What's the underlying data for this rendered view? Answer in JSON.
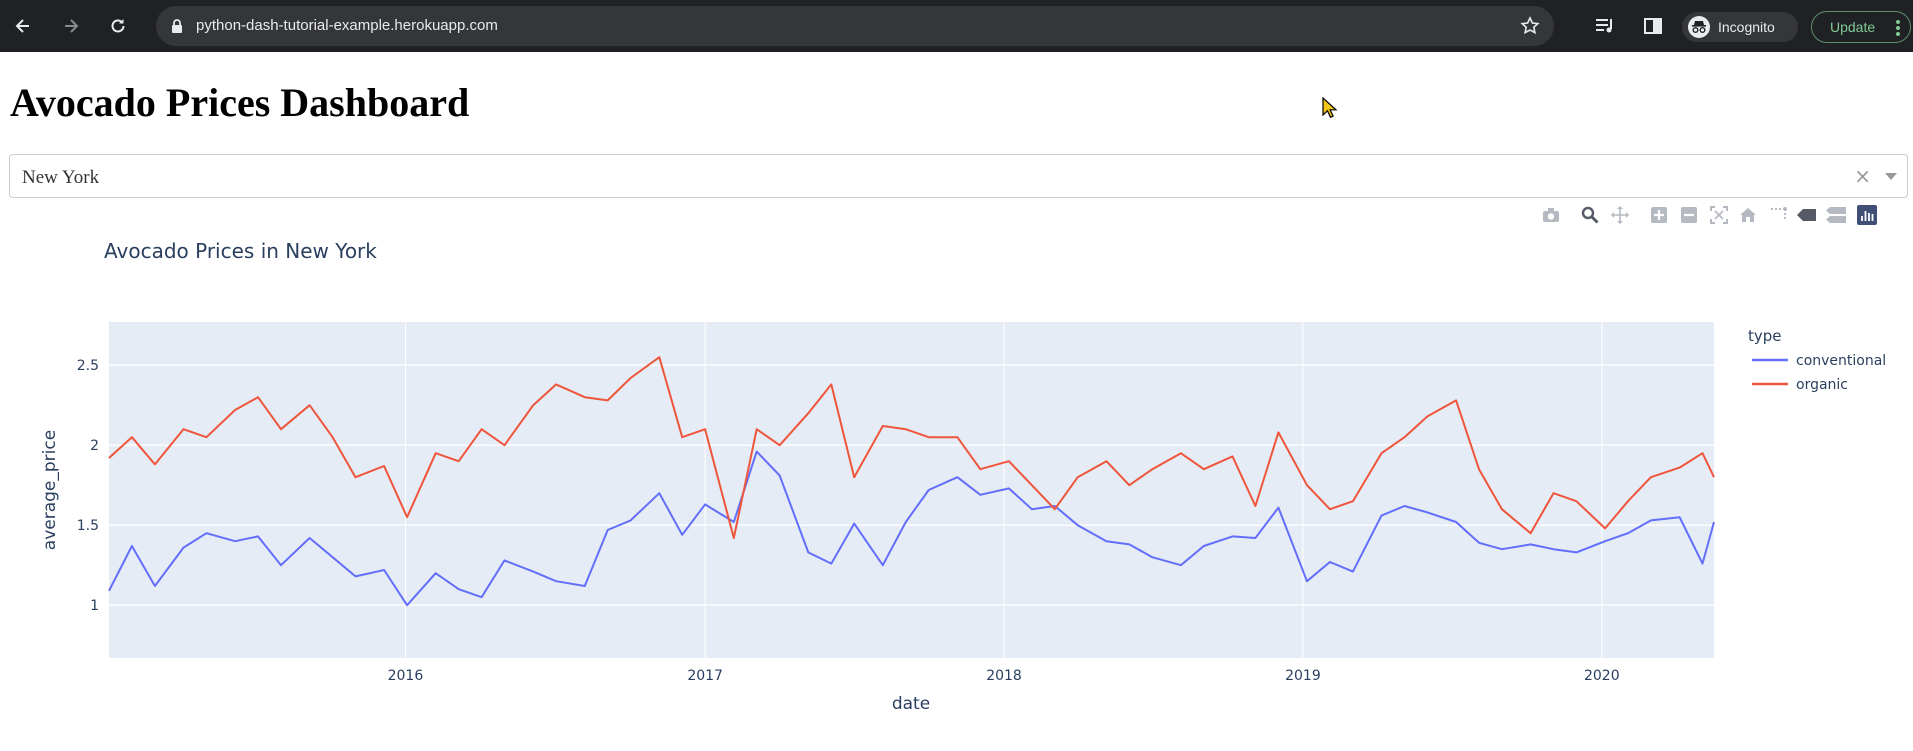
{
  "browser": {
    "url": "python-dash-tutorial-example.herokuapp.com",
    "profile_label": "Incognito",
    "update_label": "Update"
  },
  "page": {
    "title": "Avocado Prices Dashboard"
  },
  "region_dropdown": {
    "selected": "New York",
    "clear_symbol": "×"
  },
  "modebar": {
    "icons": [
      "camera-icon",
      "zoom-icon",
      "pan-icon",
      "zoom-in-icon",
      "zoom-out-icon",
      "autoscale-icon",
      "reset-axes-icon",
      "spike-lines-icon",
      "hover-closest-icon",
      "hover-compare-icon",
      "plotly-logo-icon"
    ]
  },
  "chart_data": {
    "type": "line",
    "title": "Avocado Prices in New York",
    "xlabel": "date",
    "ylabel": "average_price",
    "legend_title": "type",
    "legend_position": "right",
    "grid": true,
    "xlim": [
      "2015-01-04",
      "2020-05-17"
    ],
    "ylim": [
      0.67,
      2.77
    ],
    "xticks": [
      "2016",
      "2017",
      "2018",
      "2019",
      "2020"
    ],
    "yticks": [
      "1",
      "1.5",
      "2",
      "2.5"
    ],
    "x": [
      "2015-01-04",
      "2015-02-01",
      "2015-03-01",
      "2015-04-05",
      "2015-05-03",
      "2015-06-07",
      "2015-07-05",
      "2015-08-02",
      "2015-09-06",
      "2015-10-04",
      "2015-11-01",
      "2015-12-06",
      "2016-01-03",
      "2016-02-07",
      "2016-03-06",
      "2016-04-03",
      "2016-05-01",
      "2016-06-05",
      "2016-07-03",
      "2016-08-07",
      "2016-09-04",
      "2016-10-02",
      "2016-11-06",
      "2016-12-04",
      "2017-01-01",
      "2017-02-05",
      "2017-03-05",
      "2017-04-02",
      "2017-05-07",
      "2017-06-04",
      "2017-07-02",
      "2017-08-06",
      "2017-09-03",
      "2017-10-01",
      "2017-11-05",
      "2017-12-03",
      "2018-01-07",
      "2018-02-04",
      "2018-03-04",
      "2018-04-01",
      "2018-05-06",
      "2018-06-03",
      "2018-07-01",
      "2018-08-05",
      "2018-09-02",
      "2018-10-07",
      "2018-11-04",
      "2018-12-02",
      "2019-01-06",
      "2019-02-03",
      "2019-03-03",
      "2019-04-07",
      "2019-05-05",
      "2019-06-02",
      "2019-07-07",
      "2019-08-04",
      "2019-09-01",
      "2019-10-06",
      "2019-11-03",
      "2019-12-01",
      "2020-01-05",
      "2020-02-02",
      "2020-03-01",
      "2020-04-05",
      "2020-05-03",
      "2020-05-17"
    ],
    "series": [
      {
        "name": "conventional",
        "color": "#636efa",
        "values": [
          1.09,
          1.37,
          1.12,
          1.36,
          1.45,
          1.4,
          1.43,
          1.25,
          1.42,
          1.3,
          1.18,
          1.22,
          1.0,
          1.2,
          1.1,
          1.05,
          1.28,
          1.21,
          1.15,
          1.12,
          1.47,
          1.53,
          1.7,
          1.44,
          1.63,
          1.52,
          1.96,
          1.81,
          1.33,
          1.26,
          1.51,
          1.25,
          1.52,
          1.72,
          1.8,
          1.69,
          1.73,
          1.6,
          1.62,
          1.5,
          1.4,
          1.38,
          1.3,
          1.25,
          1.37,
          1.43,
          1.42,
          1.61,
          1.15,
          1.27,
          1.21,
          1.56,
          1.62,
          1.58,
          1.52,
          1.39,
          1.35,
          1.38,
          1.35,
          1.33,
          1.4,
          1.45,
          1.53,
          1.55,
          1.26,
          1.52
        ]
      },
      {
        "name": "organic",
        "color": "#ef553b",
        "values": [
          1.92,
          2.05,
          1.88,
          2.1,
          2.05,
          2.22,
          2.3,
          2.1,
          2.25,
          2.05,
          1.8,
          1.87,
          1.55,
          1.95,
          1.9,
          2.1,
          2.0,
          2.25,
          2.38,
          2.3,
          2.28,
          2.42,
          2.55,
          2.05,
          2.1,
          1.42,
          2.1,
          2.0,
          2.2,
          2.38,
          1.8,
          2.12,
          2.1,
          2.05,
          2.05,
          1.85,
          1.9,
          1.75,
          1.6,
          1.8,
          1.9,
          1.75,
          1.85,
          1.95,
          1.85,
          1.93,
          1.62,
          2.08,
          1.75,
          1.6,
          1.65,
          1.95,
          2.05,
          2.18,
          2.28,
          1.85,
          1.6,
          1.45,
          1.7,
          1.65,
          1.48,
          1.65,
          1.8,
          1.86,
          1.95,
          1.8
        ]
      }
    ]
  }
}
